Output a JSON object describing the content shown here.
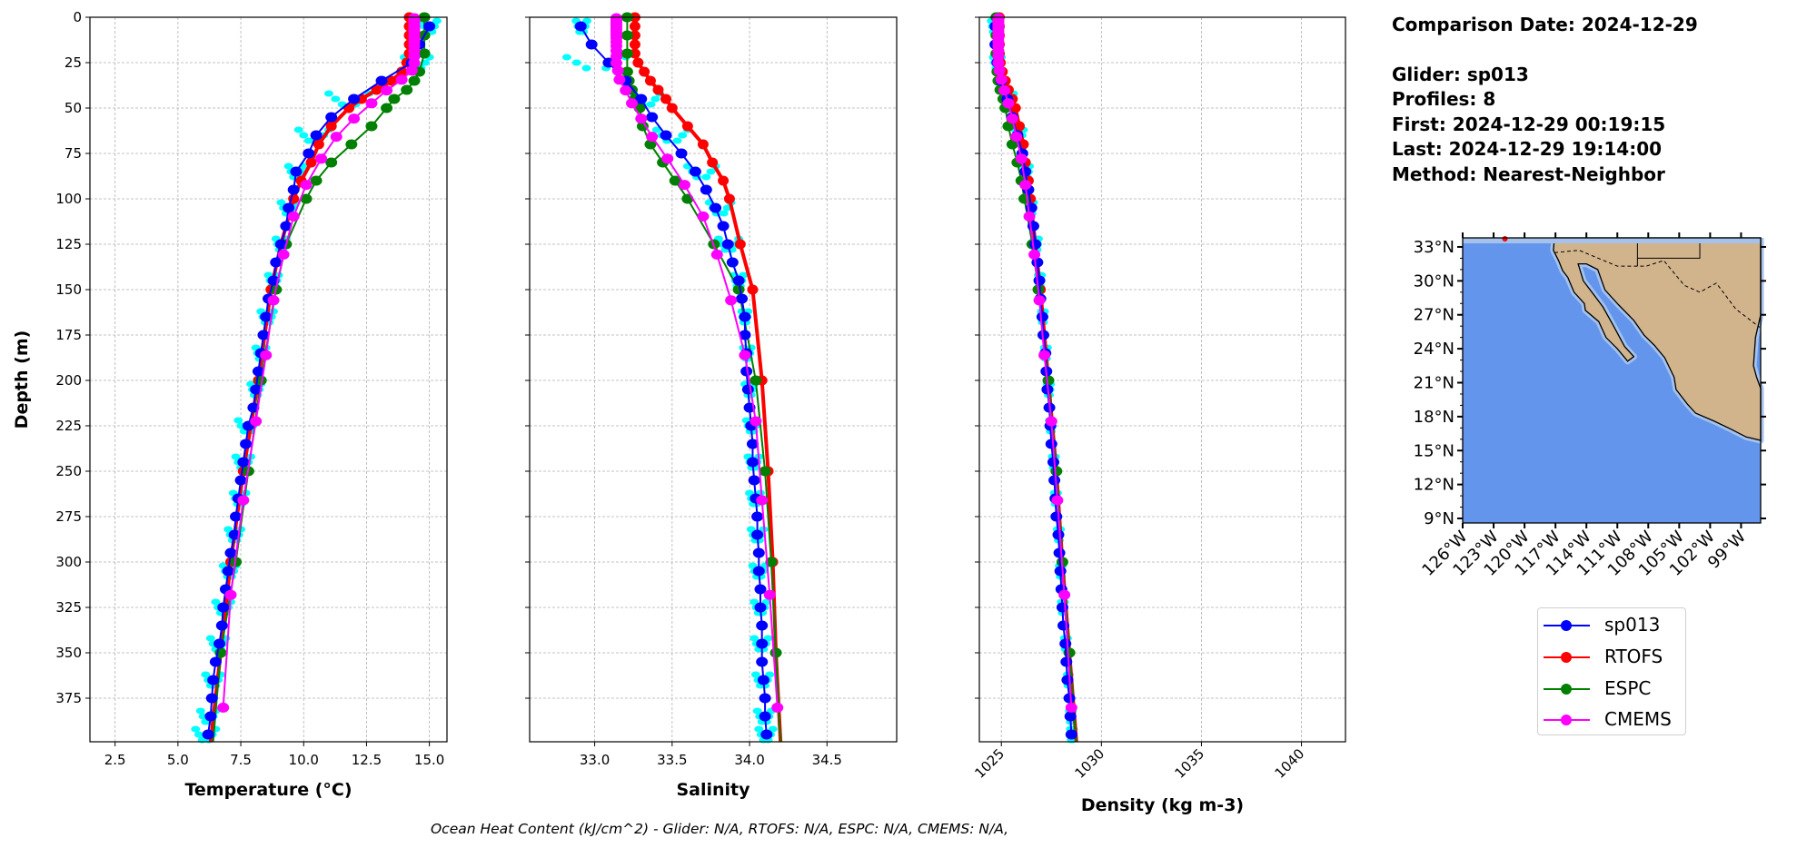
{
  "info": {
    "comparison_date": "Comparison Date: 2024-12-29",
    "glider": "Glider: sp013",
    "profiles": "Profiles: 8",
    "first": "First: 2024-12-29 00:19:15",
    "last": "Last: 2024-12-29 19:14:00",
    "method": "Method: Nearest-Neighbor"
  },
  "caption": "Ocean Heat Content (kJ/cm^2) - Glider: N/A,  RTOFS: N/A,  ESPC: N/A,  CMEMS: N/A,",
  "legend": [
    {
      "name": "sp013",
      "color": "#0000ff"
    },
    {
      "name": "RTOFS",
      "color": "#ff0000"
    },
    {
      "name": "ESPC",
      "color": "#008000"
    },
    {
      "name": "CMEMS",
      "color": "#ff00ff"
    }
  ],
  "profile_color": "#00ffff",
  "map": {
    "lat_ticks": [
      "33°N",
      "30°N",
      "27°N",
      "24°N",
      "21°N",
      "18°N",
      "15°N",
      "12°N",
      "9°N"
    ],
    "lon_ticks": [
      "126°W",
      "123°W",
      "120°W",
      "117°W",
      "114°W",
      "111°W",
      "108°W",
      "105°W",
      "102°W",
      "99°W"
    ],
    "ocean_color": "#6495ed",
    "land_color": "#d2b48c",
    "shelf_color": "#a4c2ec"
  },
  "chart_data": [
    {
      "type": "line",
      "xlabel": "Temperature (°C)",
      "ylabel": "Depth (m)",
      "xlim": [
        1.5,
        15.7
      ],
      "ylim": [
        399,
        0
      ],
      "xticks": [
        "2.5",
        "5.0",
        "7.5",
        "10.0",
        "12.5",
        "15.0"
      ],
      "yticks": [
        "0",
        "25",
        "50",
        "75",
        "100",
        "125",
        "150",
        "175",
        "200",
        "225",
        "250",
        "275",
        "300",
        "325",
        "350",
        "375"
      ],
      "grid": true,
      "profiles": {
        "depth": [
          5,
          25,
          45,
          65,
          85,
          105,
          125,
          145,
          165,
          185,
          205,
          225,
          245,
          265,
          285,
          305,
          325,
          345,
          365,
          385,
          395
        ],
        "min": [
          14.7,
          14.0,
          11.0,
          9.8,
          9.4,
          9.1,
          8.9,
          8.6,
          8.3,
          8.1,
          7.9,
          7.4,
          7.3,
          7.2,
          7.0,
          6.8,
          6.5,
          6.3,
          6.1,
          5.9,
          5.7
        ],
        "max": [
          15.3,
          15.0,
          12.6,
          11.0,
          10.0,
          9.7,
          9.3,
          9.0,
          8.8,
          8.5,
          8.3,
          8.1,
          7.9,
          7.7,
          7.5,
          7.3,
          7.1,
          6.9,
          6.7,
          6.5,
          6.5
        ]
      },
      "series": [
        {
          "name": "RTOFS",
          "depth": [
            0,
            5,
            10,
            15,
            20,
            25,
            30,
            35,
            40,
            45,
            50,
            60,
            70,
            80,
            90,
            100,
            125,
            150,
            200,
            250,
            300,
            350,
            400
          ],
          "values": [
            14.2,
            14.2,
            14.2,
            14.2,
            14.2,
            14.1,
            13.9,
            13.5,
            12.9,
            12.3,
            11.8,
            11.1,
            10.6,
            10.3,
            9.9,
            9.6,
            9.1,
            8.7,
            8.2,
            7.6,
            7.1,
            6.7,
            6.3
          ]
        },
        {
          "name": "ESPC",
          "depth": [
            0,
            10,
            20,
            30,
            35,
            40,
            45,
            50,
            60,
            70,
            80,
            90,
            100,
            125,
            150,
            200,
            250,
            300,
            350,
            400
          ],
          "values": [
            14.8,
            14.8,
            14.8,
            14.6,
            14.4,
            14.1,
            13.6,
            13.3,
            12.7,
            11.9,
            11.1,
            10.5,
            10.1,
            9.3,
            8.9,
            8.3,
            7.8,
            7.3,
            6.7,
            6.4
          ]
        },
        {
          "name": "sp013",
          "depth": [
            5,
            15,
            25,
            35,
            45,
            55,
            65,
            75,
            85,
            95,
            105,
            115,
            125,
            135,
            145,
            155,
            165,
            175,
            185,
            195,
            205,
            215,
            225,
            235,
            245,
            255,
            265,
            275,
            285,
            295,
            305,
            315,
            325,
            335,
            345,
            355,
            365,
            375,
            385,
            395
          ],
          "values": [
            15.0,
            14.6,
            14.3,
            13.1,
            12.0,
            11.1,
            10.5,
            10.2,
            9.7,
            9.6,
            9.4,
            9.3,
            9.1,
            8.9,
            8.8,
            8.6,
            8.5,
            8.4,
            8.3,
            8.2,
            8.1,
            8.0,
            7.8,
            7.7,
            7.6,
            7.5,
            7.4,
            7.3,
            7.25,
            7.1,
            7.0,
            6.9,
            6.8,
            6.75,
            6.65,
            6.5,
            6.4,
            6.35,
            6.3,
            6.2
          ]
        },
        {
          "name": "CMEMS",
          "depth": [
            0.5,
            1.5,
            2.6,
            3.8,
            5.1,
            6.4,
            7.9,
            9.6,
            11.4,
            13.5,
            15.8,
            18.5,
            21.6,
            25.2,
            29.4,
            34.4,
            40.3,
            47.4,
            55.8,
            65.8,
            77.9,
            92.3,
            109.7,
            130.7,
            155.9,
            186.1,
            222.5,
            266.0,
            318.1,
            380.2
          ],
          "values": [
            14.4,
            14.4,
            14.4,
            14.4,
            14.4,
            14.4,
            14.4,
            14.4,
            14.4,
            14.4,
            14.4,
            14.4,
            14.4,
            14.4,
            14.3,
            13.9,
            13.3,
            12.7,
            12.0,
            11.3,
            10.7,
            10.1,
            9.6,
            9.2,
            8.8,
            8.5,
            8.1,
            7.6,
            7.1,
            6.8
          ]
        }
      ]
    },
    {
      "type": "line",
      "xlabel": "Salinity",
      "ylabel": "",
      "xlim": [
        32.58,
        34.95
      ],
      "ylim": [
        399,
        0
      ],
      "xticks": [
        "33.0",
        "33.5",
        "34.0",
        "34.5"
      ],
      "yticks": [
        "0",
        "25",
        "50",
        "75",
        "100",
        "125",
        "150",
        "175",
        "200",
        "225",
        "250",
        "275",
        "300",
        "325",
        "350",
        "375"
      ],
      "grid": true,
      "profiles": {
        "depth": [
          5,
          25,
          45,
          65,
          85,
          105,
          125,
          145,
          165,
          185,
          205,
          225,
          245,
          265,
          285,
          305,
          325,
          345,
          365,
          385,
          395
        ],
        "min": [
          32.88,
          32.82,
          33.25,
          33.4,
          33.6,
          33.74,
          33.8,
          33.9,
          33.95,
          33.96,
          33.97,
          33.98,
          33.99,
          34.0,
          34.01,
          34.02,
          34.03,
          34.03,
          34.04,
          34.05,
          34.06
        ],
        "max": [
          32.95,
          33.2,
          33.42,
          33.6,
          33.78,
          33.88,
          33.93,
          33.96,
          33.99,
          34.01,
          34.03,
          34.05,
          34.06,
          34.07,
          34.09,
          34.1,
          34.11,
          34.12,
          34.13,
          34.14,
          34.15
        ]
      },
      "series": [
        {
          "name": "RTOFS",
          "depth": [
            0,
            5,
            10,
            15,
            20,
            25,
            30,
            35,
            40,
            45,
            50,
            60,
            70,
            80,
            90,
            100,
            125,
            150,
            200,
            250,
            300,
            350,
            400
          ],
          "values": [
            33.26,
            33.26,
            33.26,
            33.26,
            33.26,
            33.28,
            33.32,
            33.36,
            33.41,
            33.46,
            33.5,
            33.6,
            33.7,
            33.76,
            33.83,
            33.87,
            33.94,
            34.02,
            34.08,
            34.12,
            34.15,
            34.17,
            34.2
          ]
        },
        {
          "name": "ESPC",
          "depth": [
            0,
            10,
            20,
            30,
            35,
            40,
            45,
            50,
            60,
            70,
            80,
            90,
            100,
            125,
            150,
            200,
            250,
            300,
            350,
            400
          ],
          "values": [
            33.21,
            33.21,
            33.21,
            33.21,
            33.22,
            33.24,
            33.26,
            33.29,
            33.31,
            33.36,
            33.44,
            33.52,
            33.6,
            33.77,
            33.93,
            34.04,
            34.1,
            34.14,
            34.17,
            34.2
          ]
        },
        {
          "name": "sp013",
          "depth": [
            5,
            15,
            25,
            35,
            45,
            55,
            65,
            75,
            85,
            95,
            105,
            115,
            125,
            135,
            145,
            155,
            165,
            175,
            185,
            195,
            205,
            215,
            225,
            235,
            245,
            255,
            265,
            275,
            285,
            295,
            305,
            315,
            325,
            335,
            345,
            355,
            365,
            375,
            385,
            395
          ],
          "values": [
            32.91,
            32.98,
            33.09,
            33.2,
            33.3,
            33.37,
            33.46,
            33.56,
            33.65,
            33.72,
            33.78,
            33.83,
            33.86,
            33.89,
            33.93,
            33.95,
            33.97,
            33.97,
            33.98,
            33.98,
            33.99,
            34.0,
            34.01,
            34.02,
            34.02,
            34.03,
            34.04,
            34.05,
            34.05,
            34.06,
            34.06,
            34.07,
            34.07,
            34.08,
            34.08,
            34.08,
            34.09,
            34.1,
            34.1,
            34.11
          ]
        },
        {
          "name": "CMEMS",
          "depth": [
            0.5,
            1.5,
            2.6,
            3.8,
            5.1,
            6.4,
            7.9,
            9.6,
            11.4,
            13.5,
            15.8,
            18.5,
            21.6,
            25.2,
            29.4,
            34.4,
            40.3,
            47.4,
            55.8,
            65.8,
            77.9,
            92.3,
            109.7,
            130.7,
            155.9,
            186.1,
            222.5,
            266.0,
            318.1,
            380.2
          ],
          "values": [
            33.14,
            33.14,
            33.14,
            33.14,
            33.14,
            33.14,
            33.14,
            33.14,
            33.14,
            33.14,
            33.14,
            33.14,
            33.14,
            33.14,
            33.15,
            33.16,
            33.2,
            33.24,
            33.3,
            33.37,
            33.47,
            33.58,
            33.7,
            33.79,
            33.88,
            33.97,
            34.04,
            34.08,
            34.13,
            34.18
          ]
        }
      ]
    },
    {
      "type": "line",
      "xlabel": "Density (kg m-3)",
      "ylabel": "",
      "xlim": [
        1023.9,
        1042.2
      ],
      "ylim": [
        399,
        0
      ],
      "xticks": [
        "1025",
        "1030",
        "1035",
        "1040"
      ],
      "yticks": [
        "0",
        "25",
        "50",
        "75",
        "100",
        "125",
        "150",
        "175",
        "200",
        "225",
        "250",
        "275",
        "300",
        "325",
        "350",
        "375"
      ],
      "grid": true,
      "profiles": {
        "depth": [
          5,
          25,
          45,
          65,
          85,
          105,
          125,
          145,
          165,
          185,
          205,
          225,
          245,
          265,
          285,
          305,
          325,
          345,
          365,
          385,
          395
        ],
        "min": [
          1024.5,
          1024.6,
          1025.2,
          1025.7,
          1026.1,
          1026.4,
          1026.65,
          1026.85,
          1027.0,
          1027.15,
          1027.3,
          1027.4,
          1027.55,
          1027.65,
          1027.8,
          1027.9,
          1028.0,
          1028.15,
          1028.3,
          1028.4,
          1028.45
        ],
        "max": [
          1024.8,
          1025.0,
          1025.6,
          1026.1,
          1026.4,
          1026.6,
          1026.85,
          1027.0,
          1027.15,
          1027.3,
          1027.45,
          1027.55,
          1027.7,
          1027.8,
          1027.95,
          1028.05,
          1028.15,
          1028.3,
          1028.4,
          1028.55,
          1028.6
        ]
      },
      "series": [
        {
          "name": "RTOFS",
          "depth": [
            0,
            5,
            10,
            15,
            20,
            25,
            30,
            35,
            40,
            45,
            50,
            60,
            70,
            80,
            90,
            100,
            125,
            150,
            200,
            250,
            300,
            350,
            400
          ],
          "values": [
            1024.9,
            1024.9,
            1024.9,
            1024.9,
            1024.9,
            1024.95,
            1025.05,
            1025.2,
            1025.35,
            1025.55,
            1025.7,
            1025.9,
            1026.1,
            1026.2,
            1026.35,
            1026.45,
            1026.7,
            1026.95,
            1027.35,
            1027.75,
            1028.05,
            1028.4,
            1028.75
          ]
        },
        {
          "name": "ESPC",
          "depth": [
            0,
            10,
            20,
            30,
            35,
            40,
            45,
            50,
            60,
            70,
            80,
            90,
            100,
            125,
            150,
            200,
            250,
            300,
            350,
            400
          ],
          "values": [
            1024.75,
            1024.75,
            1024.75,
            1024.8,
            1024.85,
            1024.95,
            1025.1,
            1025.2,
            1025.35,
            1025.55,
            1025.8,
            1026.0,
            1026.15,
            1026.55,
            1026.85,
            1027.35,
            1027.75,
            1028.05,
            1028.4,
            1028.75
          ]
        },
        {
          "name": "sp013",
          "depth": [
            5,
            15,
            25,
            35,
            45,
            55,
            65,
            75,
            85,
            95,
            105,
            115,
            125,
            135,
            145,
            155,
            165,
            175,
            185,
            195,
            205,
            215,
            225,
            235,
            245,
            255,
            265,
            275,
            285,
            295,
            305,
            315,
            325,
            335,
            345,
            355,
            365,
            375,
            385,
            395
          ],
          "values": [
            1024.7,
            1024.7,
            1024.8,
            1025.0,
            1025.3,
            1025.55,
            1025.8,
            1026.05,
            1026.2,
            1026.35,
            1026.5,
            1026.6,
            1026.7,
            1026.8,
            1026.9,
            1026.95,
            1027.05,
            1027.1,
            1027.2,
            1027.25,
            1027.3,
            1027.4,
            1027.45,
            1027.5,
            1027.6,
            1027.65,
            1027.7,
            1027.75,
            1027.85,
            1027.9,
            1027.95,
            1028.0,
            1028.05,
            1028.1,
            1028.2,
            1028.25,
            1028.3,
            1028.4,
            1028.45,
            1028.5
          ]
        },
        {
          "name": "CMEMS",
          "depth": [
            0.5,
            1.5,
            2.6,
            3.8,
            5.1,
            6.4,
            7.9,
            9.6,
            11.4,
            13.5,
            15.8,
            18.5,
            21.6,
            25.2,
            29.4,
            34.4,
            40.3,
            47.4,
            55.8,
            65.8,
            77.9,
            92.3,
            109.7,
            130.7,
            155.9,
            186.1,
            222.5,
            266.0,
            318.1,
            380.2
          ],
          "values": [
            1024.85,
            1024.85,
            1024.85,
            1024.85,
            1024.85,
            1024.85,
            1024.85,
            1024.85,
            1024.85,
            1024.85,
            1024.85,
            1024.85,
            1024.85,
            1024.85,
            1024.9,
            1025.0,
            1025.15,
            1025.35,
            1025.55,
            1025.75,
            1026.0,
            1026.2,
            1026.4,
            1026.65,
            1026.9,
            1027.15,
            1027.5,
            1027.8,
            1028.15,
            1028.5
          ]
        }
      ]
    }
  ]
}
